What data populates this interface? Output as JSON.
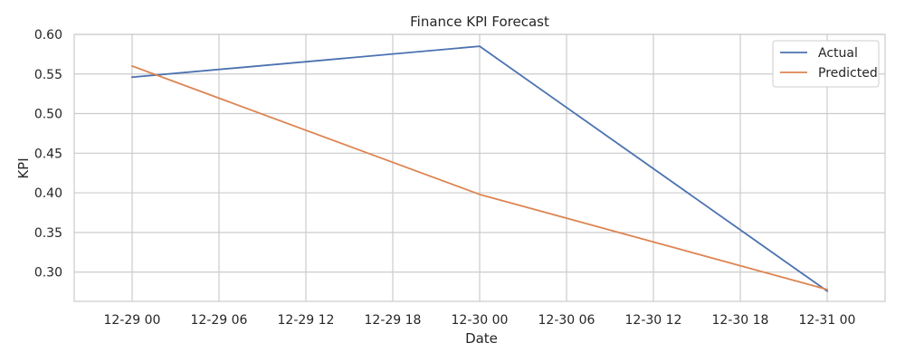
{
  "chart_data": {
    "type": "line",
    "title": "Finance KPI Forecast",
    "xlabel": "Date",
    "ylabel": "KPI",
    "x": [
      "2024-12-29 00:00",
      "2024-12-30 00:00",
      "2024-12-31 00:00"
    ],
    "series": [
      {
        "name": "Actual",
        "color": "#4c72b0",
        "values": [
          0.546,
          0.585,
          0.276
        ]
      },
      {
        "name": "Predicted",
        "color": "#dd8452",
        "values": [
          0.56,
          0.398,
          0.278
        ]
      }
    ],
    "x_ticks": [
      "12-29 00",
      "12-29 06",
      "12-29 12",
      "12-29 18",
      "12-30 00",
      "12-30 06",
      "12-30 12",
      "12-30 18",
      "12-31 00"
    ],
    "y_ticks": [
      "0.30",
      "0.35",
      "0.40",
      "0.45",
      "0.50",
      "0.55",
      "0.60"
    ],
    "xlim": [
      "2024-12-28 20:00",
      "2024-12-31 04:00"
    ],
    "ylim": [
      0.263,
      0.6
    ],
    "grid": true,
    "legend_position": "top-right",
    "background": "#ffffff",
    "grid_color": "#cccccc"
  }
}
